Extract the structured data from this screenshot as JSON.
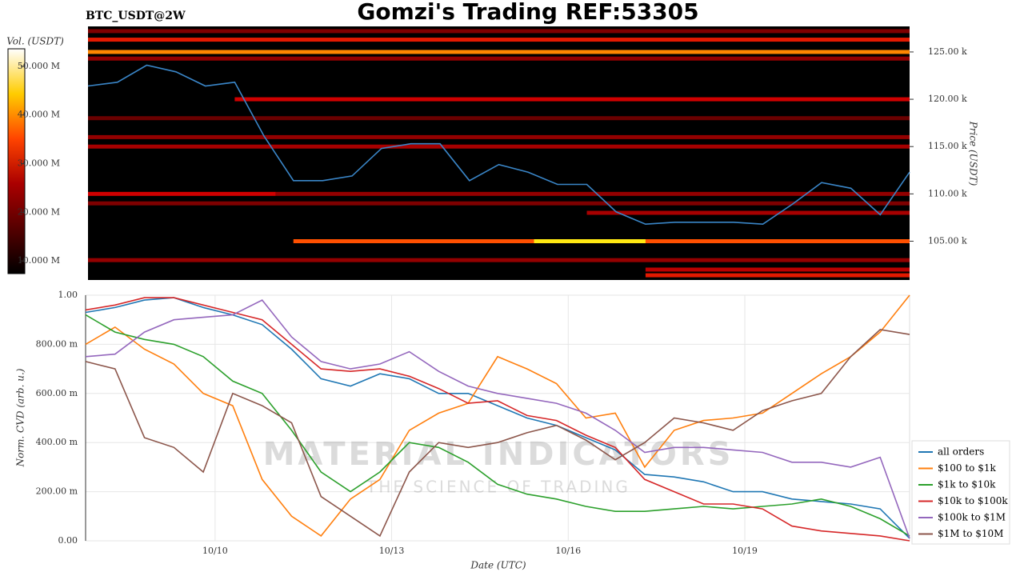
{
  "chart_data": [
    {
      "type": "heatmap",
      "title": "Gomzi's Trading REF:53305",
      "subtitle": "BTC_USDT@2W",
      "ylabel": "Price (USDT)",
      "colorbar_label": "Vol. (USDT)",
      "xlim": [
        7.8,
        21.8
      ],
      "ylim": [
        100.9,
        127.7
      ],
      "yticks": [
        {
          "value": 105,
          "label": "105.00 k"
        },
        {
          "value": 110,
          "label": "110.00 k"
        },
        {
          "value": 115,
          "label": "115.00 k"
        },
        {
          "value": 120,
          "label": "120.00 k"
        },
        {
          "value": 125,
          "label": "125.00 k"
        }
      ],
      "clim": [
        7.4,
        53.6
      ],
      "cticks": [
        {
          "value": 10,
          "label": "10.000 M"
        },
        {
          "value": 20,
          "label": "20.000 M"
        },
        {
          "value": 30,
          "label": "30.000 M"
        },
        {
          "value": 40,
          "label": "40.000 M"
        },
        {
          "value": 50,
          "label": "50.000 M"
        }
      ],
      "heatmap": {
        "levels": [
          127.2,
          126.3,
          125.0,
          124.3,
          120.0,
          118.0,
          116.0,
          115.0,
          110.0,
          110.0,
          109.0,
          108.0,
          105.0,
          105.0,
          103.0,
          102.0,
          101.4
        ],
        "volumes": [
          20,
          30,
          38,
          22,
          28,
          18,
          22,
          24,
          28,
          22,
          20,
          24,
          34,
          45,
          22,
          26,
          30
        ],
        "from": [
          7.8,
          7.8,
          7.8,
          7.8,
          10.3,
          7.8,
          7.8,
          7.8,
          7.8,
          11.0,
          7.8,
          16.3,
          11.3,
          15.4,
          7.8,
          17.3,
          17.3
        ],
        "to": [
          21.8,
          21.8,
          21.8,
          21.8,
          21.8,
          21.8,
          21.8,
          21.8,
          11.0,
          21.8,
          21.8,
          21.8,
          21.8,
          17.3,
          21.8,
          21.8,
          21.8
        ]
      },
      "x": [
        7.8,
        8.3,
        8.8,
        9.3,
        9.8,
        10.3,
        10.8,
        11.3,
        11.8,
        12.3,
        12.8,
        13.3,
        13.8,
        14.3,
        14.8,
        15.3,
        15.8,
        16.3,
        16.8,
        17.3,
        17.8,
        18.3,
        18.8,
        19.3,
        19.8,
        20.3,
        20.8,
        21.3,
        21.8
      ],
      "series": [
        {
          "color": "#3a86c8",
          "values": [
            121.4,
            121.8,
            123.6,
            122.9,
            121.4,
            121.8,
            116.1,
            111.4,
            111.4,
            111.9,
            114.8,
            115.3,
            115.3,
            111.4,
            113.1,
            112.3,
            111.0,
            111.0,
            108.1,
            106.8,
            107.0,
            107.0,
            107.0,
            106.8,
            108.9,
            111.2,
            110.6,
            107.8,
            112.3
          ]
        }
      ]
    },
    {
      "type": "line",
      "ylabel": "Norm. CVD (arb. u.)",
      "xlabel": "Date (UTC)",
      "watermark": [
        "MATERIAL INDICATORS",
        "THE SCIENCE OF TRADING"
      ],
      "xlim": [
        7.8,
        21.8
      ],
      "ylim": [
        0,
        1
      ],
      "xticks": [
        {
          "value": 10,
          "label": "10/10"
        },
        {
          "value": 13,
          "label": "10/13"
        },
        {
          "value": 16,
          "label": "10/16"
        },
        {
          "value": 19,
          "label": "10/19"
        }
      ],
      "yticks": [
        {
          "value": 0,
          "label": "0.00"
        },
        {
          "value": 0.2,
          "label": "200.00 m"
        },
        {
          "value": 0.4,
          "label": "400.00 m"
        },
        {
          "value": 0.6,
          "label": "600.00 m"
        },
        {
          "value": 0.8,
          "label": "800.00 m"
        },
        {
          "value": 1,
          "label": "1.00"
        }
      ],
      "grid": true,
      "legend": "lower right",
      "x": [
        7.8,
        8.3,
        8.8,
        9.3,
        9.8,
        10.3,
        10.8,
        11.3,
        11.8,
        12.3,
        12.8,
        13.3,
        13.8,
        14.3,
        14.8,
        15.3,
        15.8,
        16.3,
        16.8,
        17.3,
        17.8,
        18.3,
        18.8,
        19.3,
        19.8,
        20.3,
        20.8,
        21.3,
        21.8
      ],
      "series": [
        {
          "name": "all orders",
          "color": "#1f77b4",
          "values": [
            0.93,
            0.95,
            0.98,
            0.99,
            0.95,
            0.92,
            0.88,
            0.78,
            0.66,
            0.63,
            0.68,
            0.66,
            0.6,
            0.6,
            0.55,
            0.5,
            0.47,
            0.42,
            0.37,
            0.27,
            0.26,
            0.24,
            0.2,
            0.2,
            0.17,
            0.16,
            0.15,
            0.13,
            0.01
          ]
        },
        {
          "name": "$100 to $1k",
          "color": "#ff7f0e",
          "values": [
            0.8,
            0.87,
            0.78,
            0.72,
            0.6,
            0.55,
            0.25,
            0.1,
            0.02,
            0.17,
            0.25,
            0.45,
            0.52,
            0.56,
            0.75,
            0.7,
            0.64,
            0.5,
            0.52,
            0.3,
            0.45,
            0.49,
            0.5,
            0.52,
            0.6,
            0.68,
            0.75,
            0.85,
            1.0
          ]
        },
        {
          "name": "$1k to $10k",
          "color": "#2ca02c",
          "values": [
            0.92,
            0.85,
            0.82,
            0.8,
            0.75,
            0.65,
            0.6,
            0.45,
            0.28,
            0.2,
            0.28,
            0.4,
            0.38,
            0.32,
            0.23,
            0.19,
            0.17,
            0.14,
            0.12,
            0.12,
            0.13,
            0.14,
            0.13,
            0.14,
            0.15,
            0.17,
            0.14,
            0.09,
            0.02
          ]
        },
        {
          "name": "$10k to $100k",
          "color": "#d62728",
          "values": [
            0.94,
            0.96,
            0.99,
            0.99,
            0.96,
            0.93,
            0.9,
            0.8,
            0.7,
            0.69,
            0.7,
            0.67,
            0.62,
            0.56,
            0.57,
            0.51,
            0.49,
            0.43,
            0.38,
            0.25,
            0.2,
            0.15,
            0.15,
            0.13,
            0.06,
            0.04,
            0.03,
            0.02,
            0.0
          ]
        },
        {
          "name": "$100k to $1M",
          "color": "#9467bd",
          "values": [
            0.75,
            0.76,
            0.85,
            0.9,
            0.91,
            0.92,
            0.98,
            0.83,
            0.73,
            0.7,
            0.72,
            0.77,
            0.69,
            0.63,
            0.6,
            0.58,
            0.56,
            0.52,
            0.45,
            0.36,
            0.38,
            0.38,
            0.37,
            0.36,
            0.32,
            0.32,
            0.3,
            0.34,
            0.01
          ]
        },
        {
          "name": "$1M to $10M",
          "color": "#8c564b",
          "values": [
            0.73,
            0.7,
            0.42,
            0.38,
            0.28,
            0.6,
            0.55,
            0.48,
            0.18,
            0.1,
            0.02,
            0.28,
            0.4,
            0.38,
            0.4,
            0.44,
            0.47,
            0.41,
            0.33,
            0.4,
            0.5,
            0.48,
            0.45,
            0.53,
            0.57,
            0.6,
            0.75,
            0.86,
            0.84
          ]
        }
      ]
    }
  ]
}
